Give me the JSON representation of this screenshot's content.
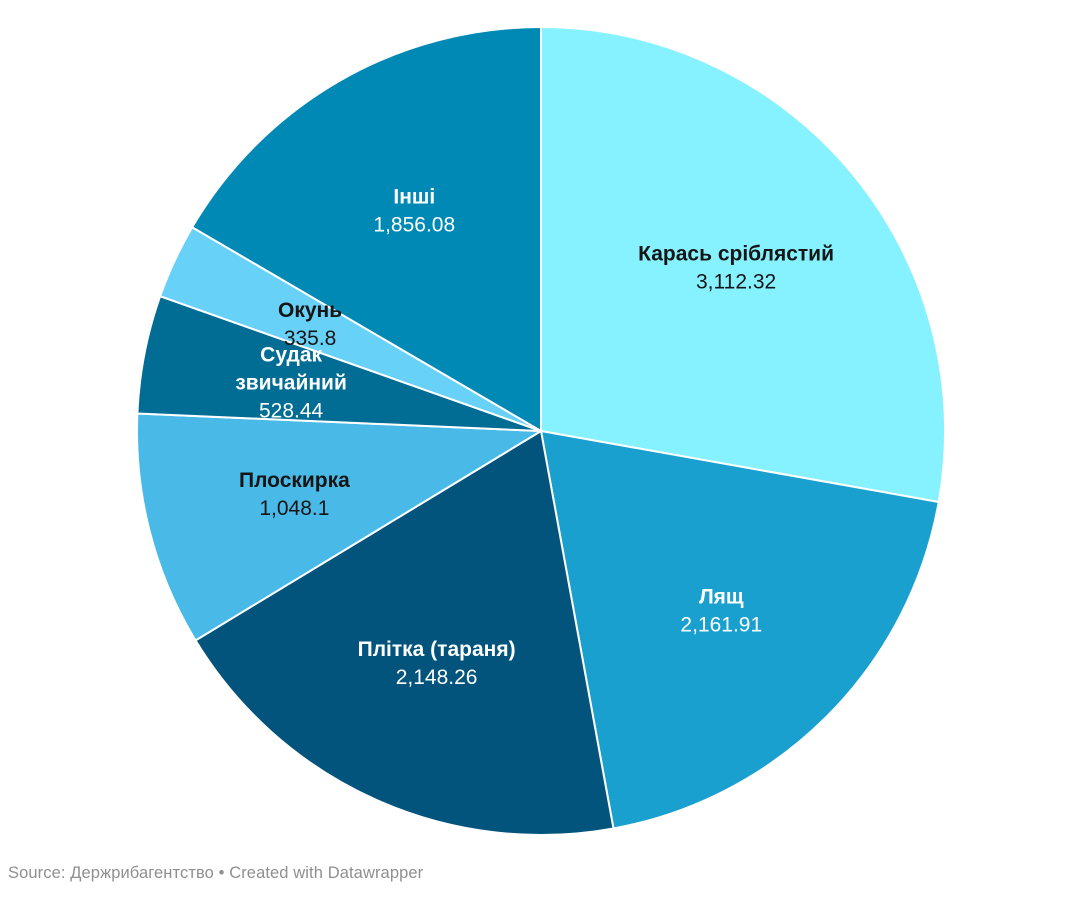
{
  "chart_data": {
    "type": "pie",
    "title": "",
    "direction": "clockwise",
    "start_angle_deg": 0,
    "legend": "none",
    "stroke_color": "#ffffff",
    "total": 11190.91,
    "slices": [
      {
        "label": "Карась сріблястий",
        "label_lines": [
          "Карась сріблястий"
        ],
        "value": 3112.32,
        "value_display": "3,112.32",
        "color": "#87F2FF",
        "text_color": "#151515"
      },
      {
        "label": "Лящ",
        "label_lines": [
          "Лящ"
        ],
        "value": 2161.91,
        "value_display": "2,161.91",
        "color": "#1AA0CF",
        "text_color": "#FFFFFF"
      },
      {
        "label": "Плітка (тараня)",
        "label_lines": [
          "Плітка (тараня)"
        ],
        "value": 2148.26,
        "value_display": "2,148.26",
        "color": "#02547D",
        "text_color": "#FFFFFF"
      },
      {
        "label": "Плоскирка",
        "label_lines": [
          "Плоскирка"
        ],
        "value": 1048.1,
        "value_display": "1,048.1",
        "color": "#49BAE7",
        "text_color": "#151515"
      },
      {
        "label": "Судак звичайний",
        "label_lines": [
          "Судак",
          "звичайний"
        ],
        "value": 528.44,
        "value_display": "528.44",
        "color": "#016C94",
        "text_color": "#FFFFFF"
      },
      {
        "label": "Окунь",
        "label_lines": [
          "Окунь"
        ],
        "value": 335.8,
        "value_display": "335.8",
        "color": "#67D1F8",
        "text_color": "#151515"
      },
      {
        "label": "Інші",
        "label_lines": [
          "Інші"
        ],
        "value": 1856.08,
        "value_display": "1,856.08",
        "color": "#0089B4",
        "text_color": "#FFFFFF"
      }
    ]
  },
  "footer": {
    "source_text_prefix": "Source: Держрибагентство • ",
    "datawrapper_credit": "Created with Datawrapper"
  }
}
